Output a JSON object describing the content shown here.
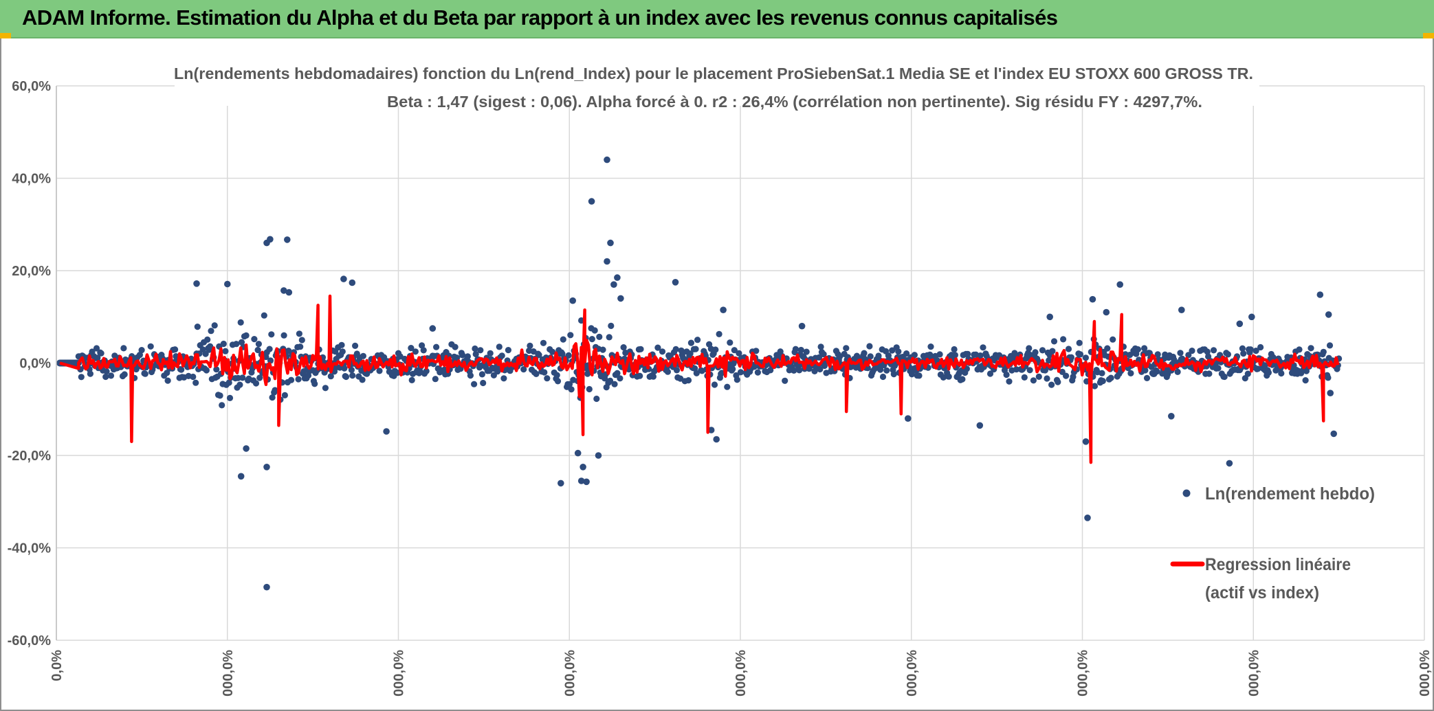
{
  "header": {
    "title": "ADAM Informe. Estimation du Alpha et du Beta par rapport à un index avec les revenus connus capitalisés"
  },
  "colors": {
    "header_bg": "#7fc97f",
    "scatter": "#2e4b7c",
    "regression": "#ff0000",
    "grid": "#d9d9d9",
    "text": "#595959"
  },
  "chart_data": {
    "type": "scatter",
    "title_line1": "Ln(rendements hebdomadaires) fonction du Ln(rend_Index) pour le placement ProSiebenSat.1 Media SE et l'index EU STOXX 600 GROSS TR.",
    "title_line2": "Beta : 1,47 (sigest : 0,06). Alpha forcé à 0. r2 : 26,4% (corrélation non pertinente). Sig résidu FY : 4297,7%.",
    "ylim": [
      -60,
      60
    ],
    "y_ticks": [
      {
        "value": 60,
        "label": "60,0%"
      },
      {
        "value": 40,
        "label": "40,0%"
      },
      {
        "value": 20,
        "label": "20,0%"
      },
      {
        "value": 0,
        "label": "0,0%"
      },
      {
        "value": -20,
        "label": "-20,0%"
      },
      {
        "value": -40,
        "label": "-40,0%"
      },
      {
        "value": -60,
        "label": "-60,0%"
      }
    ],
    "xlim": [
      0,
      8
    ],
    "x_ticks": [
      {
        "value": 0,
        "label": "0,0%"
      },
      {
        "value": 1,
        "label": "000,0%"
      },
      {
        "value": 2,
        "label": "000,0%"
      },
      {
        "value": 3,
        "label": "000,0%"
      },
      {
        "value": 4,
        "label": "000,0%"
      },
      {
        "value": 5,
        "label": "000,0%"
      },
      {
        "value": 6,
        "label": "000,0%"
      },
      {
        "value": 7,
        "label": "000,0%"
      },
      {
        "value": 8,
        "label": "000,0%"
      }
    ],
    "legend_position": "right",
    "series": [
      {
        "name": "Ln(rendement hebdo)",
        "kind": "scatter",
        "data_start_x": 0.13,
        "data_end_x": 7.5,
        "notable_points": [
          {
            "x": 1.25,
            "y": 26.8
          },
          {
            "x": 1.23,
            "y": 26.0
          },
          {
            "x": 1.35,
            "y": 26.7
          },
          {
            "x": 1.23,
            "y": -48.5
          },
          {
            "x": 1.08,
            "y": -24.5
          },
          {
            "x": 1.11,
            "y": -18.5
          },
          {
            "x": 1.23,
            "y": -22.5
          },
          {
            "x": 0.82,
            "y": 17.2
          },
          {
            "x": 1.0,
            "y": 17.1
          },
          {
            "x": 1.68,
            "y": 18.2
          },
          {
            "x": 1.73,
            "y": 17.4
          },
          {
            "x": 1.33,
            "y": 15.7
          },
          {
            "x": 1.36,
            "y": 15.3
          },
          {
            "x": 1.93,
            "y": -14.8
          },
          {
            "x": 2.2,
            "y": 7.5
          },
          {
            "x": 3.22,
            "y": 44.0
          },
          {
            "x": 3.13,
            "y": 35.0
          },
          {
            "x": 3.24,
            "y": 26.0
          },
          {
            "x": 3.22,
            "y": 22.0
          },
          {
            "x": 3.28,
            "y": 18.5
          },
          {
            "x": 3.26,
            "y": 17.0
          },
          {
            "x": 2.95,
            "y": -26.0
          },
          {
            "x": 3.07,
            "y": -25.5
          },
          {
            "x": 3.1,
            "y": -25.7
          },
          {
            "x": 3.08,
            "y": -22.5
          },
          {
            "x": 3.17,
            "y": -20.0
          },
          {
            "x": 3.05,
            "y": -19.5
          },
          {
            "x": 3.02,
            "y": 13.5
          },
          {
            "x": 3.3,
            "y": 14.0
          },
          {
            "x": 3.62,
            "y": 17.5
          },
          {
            "x": 3.9,
            "y": 11.5
          },
          {
            "x": 3.86,
            "y": -16.5
          },
          {
            "x": 3.83,
            "y": -14.5
          },
          {
            "x": 4.36,
            "y": 8.0
          },
          {
            "x": 4.98,
            "y": -12.0
          },
          {
            "x": 5.4,
            "y": -13.5
          },
          {
            "x": 5.81,
            "y": 10.0
          },
          {
            "x": 6.03,
            "y": -33.5
          },
          {
            "x": 6.02,
            "y": -17.0
          },
          {
            "x": 6.06,
            "y": 13.8
          },
          {
            "x": 6.22,
            "y": 17.0
          },
          {
            "x": 6.14,
            "y": 11.0
          },
          {
            "x": 6.58,
            "y": 11.5
          },
          {
            "x": 6.86,
            "y": -21.7
          },
          {
            "x": 6.92,
            "y": 8.5
          },
          {
            "x": 7.39,
            "y": 14.8
          },
          {
            "x": 7.44,
            "y": 10.5
          },
          {
            "x": 7.47,
            "y": -15.3
          },
          {
            "x": 7.45,
            "y": -6.5
          },
          {
            "x": 6.99,
            "y": 10.0
          },
          {
            "x": 6.52,
            "y": -11.5
          }
        ],
        "seed": 20240611
      },
      {
        "name": "Regression linéaire (actif vs index)",
        "legend_line1": "Regression linéaire",
        "legend_line2": "(actif vs index)",
        "kind": "line",
        "notable_points": [
          {
            "x": 0.44,
            "y": -17.0
          },
          {
            "x": 1.3,
            "y": -13.5
          },
          {
            "x": 1.6,
            "y": 14.5
          },
          {
            "x": 1.53,
            "y": 12.5
          },
          {
            "x": 3.09,
            "y": 11.5
          },
          {
            "x": 3.08,
            "y": -15.5
          },
          {
            "x": 3.81,
            "y": -15.0
          },
          {
            "x": 6.05,
            "y": -21.5
          },
          {
            "x": 6.07,
            "y": 9.0
          },
          {
            "x": 6.23,
            "y": 10.5
          },
          {
            "x": 7.41,
            "y": -12.5
          },
          {
            "x": 4.94,
            "y": -11.0
          },
          {
            "x": 4.62,
            "y": -10.5
          }
        ]
      }
    ]
  }
}
